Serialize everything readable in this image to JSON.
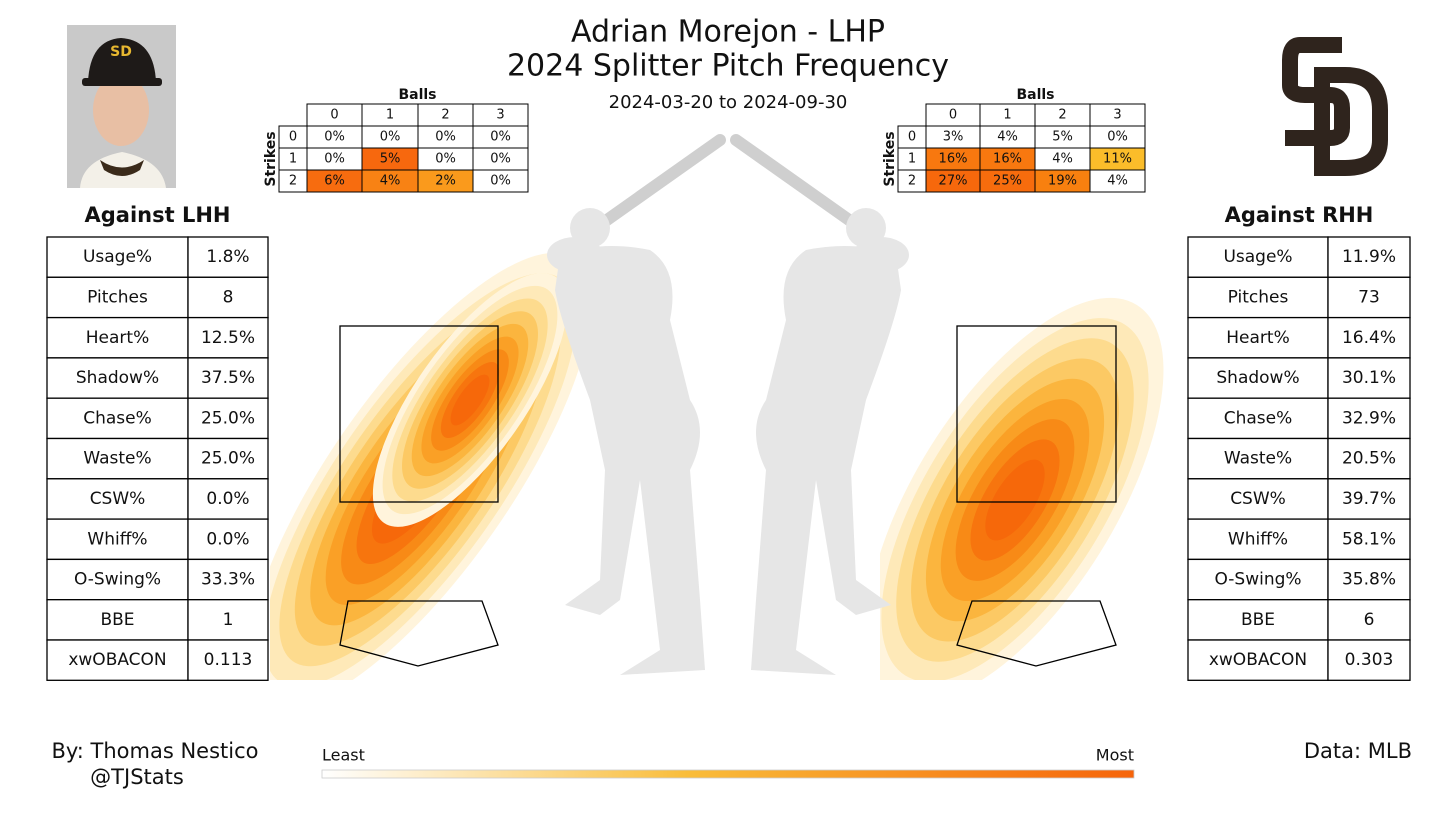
{
  "header": {
    "title": "Adrian Morejon - LHP",
    "subtitle": "2024 Splitter Pitch Frequency",
    "date_range": "2024-03-20 to 2024-09-30"
  },
  "count_grids": [
    {
      "balls_label": "Balls",
      "strikes_label": "Strikes",
      "balls": [
        "0",
        "1",
        "2",
        "3"
      ],
      "strikes": [
        "0",
        "1",
        "2"
      ],
      "cells": [
        [
          "0%",
          "0%",
          "0%",
          "0%"
        ],
        [
          "0%",
          "5%",
          "0%",
          "0%"
        ],
        [
          "6%",
          "4%",
          "2%",
          "0%"
        ]
      ],
      "colors": [
        [
          "#ffffff",
          "#ffffff",
          "#ffffff",
          "#ffffff"
        ],
        [
          "#ffffff",
          "#f7680e",
          "#ffffff",
          "#ffffff"
        ],
        [
          "#f76c0f",
          "#f88214",
          "#fa9a1c",
          "#ffffff"
        ]
      ]
    },
    {
      "balls_label": "Balls",
      "strikes_label": "Strikes",
      "balls": [
        "0",
        "1",
        "2",
        "3"
      ],
      "strikes": [
        "0",
        "1",
        "2"
      ],
      "cells": [
        [
          "3%",
          "4%",
          "5%",
          "0%"
        ],
        [
          "16%",
          "16%",
          "4%",
          "11%"
        ],
        [
          "27%",
          "25%",
          "19%",
          "4%"
        ]
      ],
      "colors": [
        [
          "#ffffff",
          "#ffffff",
          "#ffffff",
          "#ffffff"
        ],
        [
          "#f8780f",
          "#f8780f",
          "#ffffff",
          "#fbbd2a"
        ],
        [
          "#f6680c",
          "#f76c0d",
          "#f8800f",
          "#ffffff"
        ]
      ]
    }
  ],
  "tables": [
    {
      "title": "Against LHH",
      "rows": [
        [
          "Usage%",
          "1.8%"
        ],
        [
          "Pitches",
          "8"
        ],
        [
          "Heart%",
          "12.5%"
        ],
        [
          "Shadow%",
          "37.5%"
        ],
        [
          "Chase%",
          "25.0%"
        ],
        [
          "Waste%",
          "25.0%"
        ],
        [
          "CSW%",
          "0.0%"
        ],
        [
          "Whiff%",
          "0.0%"
        ],
        [
          "O-Swing%",
          "33.3%"
        ],
        [
          "BBE",
          "1"
        ],
        [
          "xwOBACON",
          "0.113"
        ]
      ]
    },
    {
      "title": "Against RHH",
      "rows": [
        [
          "Usage%",
          "11.9%"
        ],
        [
          "Pitches",
          "73"
        ],
        [
          "Heart%",
          "16.4%"
        ],
        [
          "Shadow%",
          "30.1%"
        ],
        [
          "Chase%",
          "32.9%"
        ],
        [
          "Waste%",
          "20.5%"
        ],
        [
          "CSW%",
          "39.7%"
        ],
        [
          "Whiff%",
          "58.1%"
        ],
        [
          "O-Swing%",
          "35.8%"
        ],
        [
          "BBE",
          "6"
        ],
        [
          "xwOBACON",
          "0.303"
        ]
      ]
    }
  ],
  "colorbar": {
    "low": "Least",
    "high": "Most"
  },
  "footer": {
    "author": "By: Thomas Nestico",
    "handle": "@TJStats",
    "source": "Data: MLB"
  }
}
